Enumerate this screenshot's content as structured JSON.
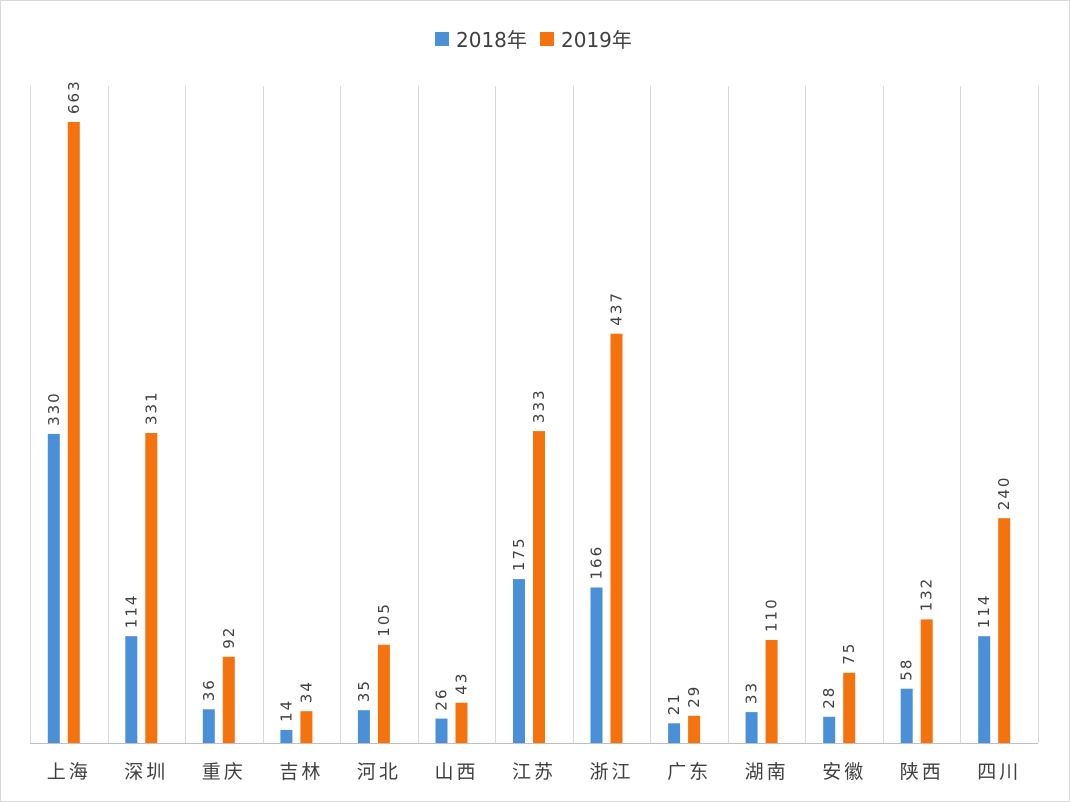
{
  "chart_data": {
    "type": "bar",
    "categories": [
      "上海",
      "深圳",
      "重庆",
      "吉林",
      "河北",
      "山西",
      "江苏",
      "浙江",
      "广东",
      "湖南",
      "安徽",
      "陕西",
      "四川"
    ],
    "series": [
      {
        "name": "2018年",
        "color": "#4a90d9",
        "values": [
          330,
          114,
          36,
          14,
          35,
          26,
          175,
          166,
          21,
          33,
          28,
          58,
          114
        ]
      },
      {
        "name": "2019年",
        "color": "#f4730f",
        "values": [
          663,
          331,
          92,
          34,
          105,
          43,
          333,
          437,
          29,
          110,
          75,
          132,
          240
        ]
      }
    ],
    "title": "",
    "xlabel": "",
    "ylabel": "",
    "ylim": [
      0,
      663
    ],
    "grid": "vertical",
    "legend_position": "top-center",
    "data_labels": "rotated-vertical"
  }
}
